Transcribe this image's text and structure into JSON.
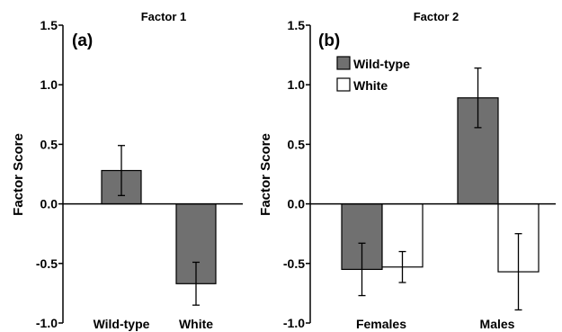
{
  "chart_data": [
    {
      "type": "bar",
      "panel_label": "(a)",
      "title": "Factor 1",
      "ylabel": "Factor Score",
      "xlabel": "",
      "ylim": [
        -1.0,
        1.5
      ],
      "yticks": [
        "1.5",
        "1.0",
        "0.5",
        "0.0",
        "-0.5",
        "-1.0"
      ],
      "categories": [
        "Wild-type",
        "White"
      ],
      "series": [
        {
          "name": "",
          "color": "#707070",
          "values": [
            0.28,
            -0.67
          ],
          "errors": [
            0.21,
            0.18
          ]
        }
      ],
      "grid": false
    },
    {
      "type": "bar",
      "panel_label": "(b)",
      "title": "Factor 2",
      "ylabel": "Factor Score",
      "xlabel": "",
      "ylim": [
        -1.0,
        1.5
      ],
      "yticks": [
        "1.5",
        "1.0",
        "0.5",
        "0.0",
        "-0.5",
        "-1.0"
      ],
      "categories": [
        "Females",
        "Males"
      ],
      "series": [
        {
          "name": "Wild-type",
          "color": "#707070",
          "values": [
            -0.55,
            0.89
          ],
          "errors": [
            0.22,
            0.25
          ]
        },
        {
          "name": "White",
          "color": "#ffffff",
          "values": [
            -0.53,
            -0.57
          ],
          "errors": [
            0.13,
            0.32
          ]
        }
      ],
      "legend": "top-left",
      "grid": false
    }
  ]
}
